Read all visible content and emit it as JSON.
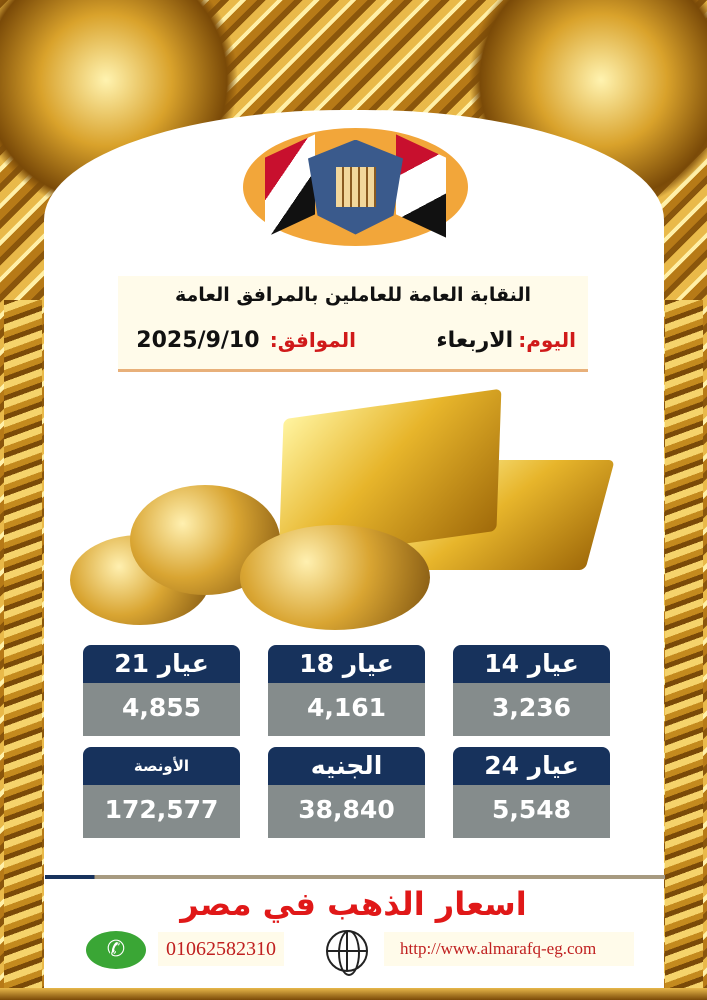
{
  "logo": {
    "text": "النقابة العامة للعاملين بالمرافق العامة"
  },
  "header": {
    "org_name": "النقابة العامة للعاملين بالمرافق العامة",
    "day_label": "اليوم:",
    "day_value": "الاربعاء",
    "date_label": "الموافق:",
    "date_value": "2025/9/10"
  },
  "prices": [
    {
      "label": "عيار 21",
      "value": "4,855"
    },
    {
      "label": "عيار 18",
      "value": "4,161"
    },
    {
      "label": "عيار 14",
      "value": "3,236"
    },
    {
      "label": "الأونصة",
      "value": "172,577"
    },
    {
      "label": "الجنيه",
      "value": "38,840"
    },
    {
      "label": "عيار 24",
      "value": "5,548"
    }
  ],
  "footer": {
    "title": "اسعار الذهب في مصر",
    "phone": "01062582310",
    "website": "http://www.almarafq-eg.com"
  },
  "colors": {
    "card_header": "#17325c",
    "card_value": "#858c8c",
    "title": "#e01818",
    "accent": "#d01a1a"
  },
  "icons": {
    "whatsapp": "whatsapp-icon",
    "globe": "globe-icon"
  }
}
